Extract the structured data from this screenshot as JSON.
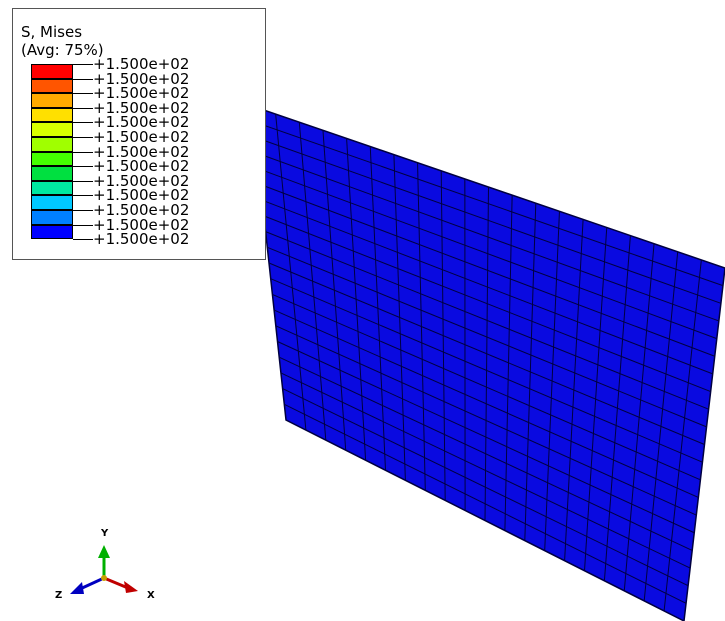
{
  "legend": {
    "title": "S, Mises",
    "subtitle": "(Avg: 75%)",
    "labels": [
      "+1.500e+02",
      "+1.500e+02",
      "+1.500e+02",
      "+1.500e+02",
      "+1.500e+02",
      "+1.500e+02",
      "+1.500e+02",
      "+1.500e+02",
      "+1.500e+02",
      "+1.500e+02",
      "+1.500e+02",
      "+1.500e+02",
      "+1.500e+02"
    ],
    "colors": [
      "#ff0000",
      "#ff5500",
      "#ffaa00",
      "#ffe000",
      "#d8ff00",
      "#a0ff00",
      "#44ff00",
      "#00e040",
      "#00e8a0",
      "#00c8ff",
      "#0080ff",
      "#0000ff"
    ]
  },
  "model": {
    "fill_color": "#0a0ae0",
    "mesh_color": "#000040",
    "mesh_divisions_u": 20,
    "mesh_divisions_v": 20
  },
  "triad": {
    "x_label": "X",
    "y_label": "Y",
    "z_label": "Z",
    "x_color": "#c00000",
    "y_color": "#00b000",
    "z_color": "#0000c0"
  }
}
